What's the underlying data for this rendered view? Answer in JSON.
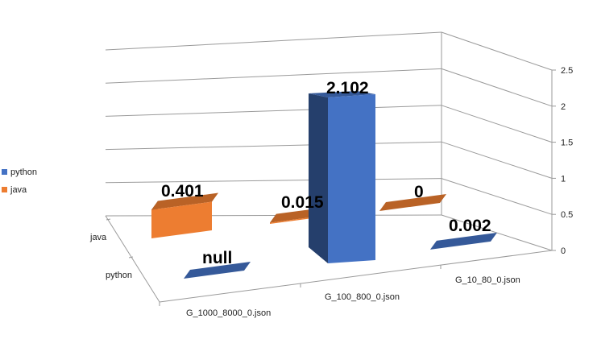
{
  "chart_data": {
    "type": "bar",
    "subtype": "3d-column",
    "categories": [
      "G_1000_8000_0.json",
      "G_100_800_0.json",
      "G_10_80_0.json"
    ],
    "series": [
      {
        "name": "python",
        "values": [
          null,
          2.102,
          0.002
        ],
        "labels": [
          "null",
          "2.102",
          "0.002"
        ],
        "color": "#4472C4"
      },
      {
        "name": "java",
        "values": [
          0.401,
          0.015,
          0
        ],
        "labels": [
          "0.401",
          "0.015",
          "0"
        ],
        "color": "#ED7D31"
      }
    ],
    "depth_axis_labels": [
      "java",
      "python"
    ],
    "yticks": [
      "0",
      "0.5",
      "1",
      "1.5",
      "2",
      "2.5"
    ],
    "ylim": [
      0,
      2.5
    ],
    "grid": true,
    "legend_position": "left"
  }
}
